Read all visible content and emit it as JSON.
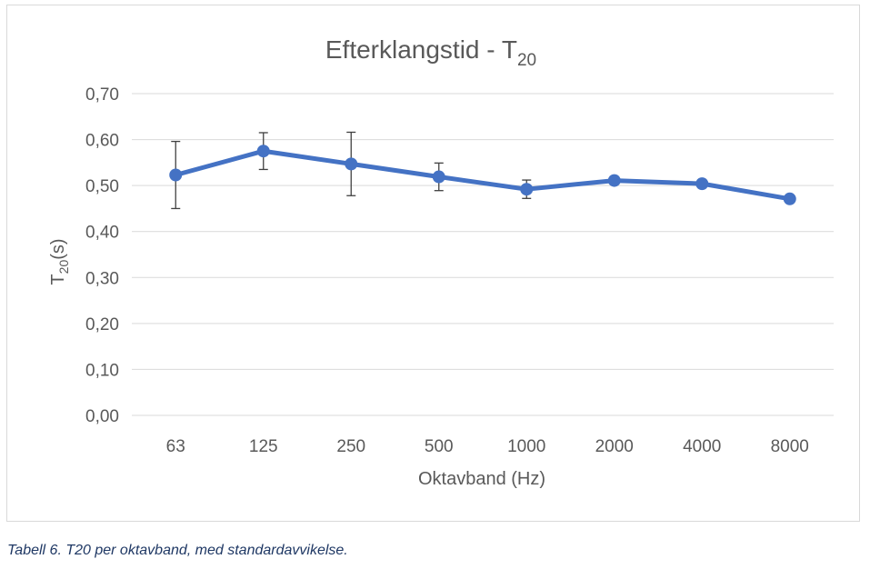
{
  "chart_data": {
    "type": "line",
    "title": {
      "main": "Efterklangstid - T",
      "sub": "20"
    },
    "xlabel": "Oktavband (Hz)",
    "ylabel": {
      "main": "T",
      "sub": "20",
      "suffix": "(s)"
    },
    "categories": [
      "63",
      "125",
      "250",
      "500",
      "1000",
      "2000",
      "4000",
      "8000"
    ],
    "ylim": [
      0,
      0.7
    ],
    "yticks": [
      "0,00",
      "0,10",
      "0,20",
      "0,30",
      "0,40",
      "0,50",
      "0,60",
      "0,70"
    ],
    "grid": true,
    "legend": false,
    "series": [
      {
        "values": [
          0.523,
          0.575,
          0.547,
          0.519,
          0.492,
          0.511,
          0.504,
          0.471
        ],
        "error": [
          0.073,
          0.04,
          0.069,
          0.03,
          0.02,
          0.008,
          0.007,
          0.007
        ],
        "color": "#4472c4"
      }
    ]
  },
  "caption": "Tabell 6. T20 per oktavband, med standardavvikelse."
}
